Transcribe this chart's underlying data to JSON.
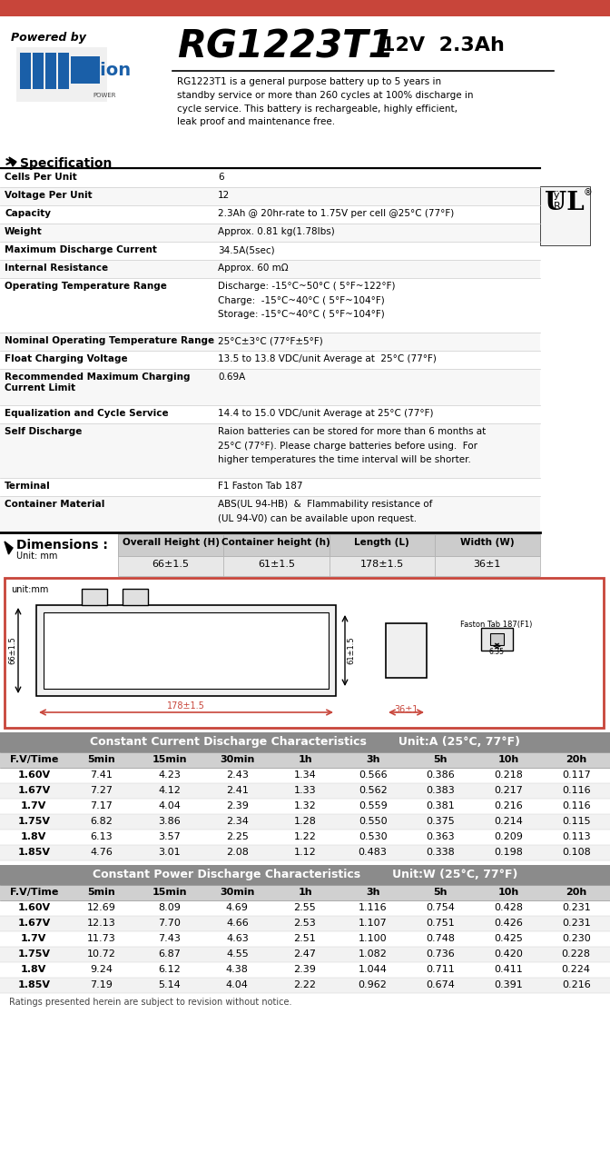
{
  "top_bar_color": "#C8453A",
  "header_bg": "#ffffff",
  "model": "RG1223T1",
  "voltage": "12V",
  "capacity": "2.3Ah",
  "description": "RG1223T1 is a general purpose battery up to 5 years in\nstandby service or more than 260 cycles at 100% discharge in\ncycle service. This battery is rechargeable, highly efficient,\nleak proof and maintenance free.",
  "spec_title": "Specification",
  "specs": [
    [
      "Cells Per Unit",
      "6"
    ],
    [
      "Voltage Per Unit",
      "12"
    ],
    [
      "Capacity",
      "2.3Ah @ 20hr-rate to 1.75V per cell @25°C (77°F)"
    ],
    [
      "Weight",
      "Approx. 0.81 kg(1.78lbs)"
    ],
    [
      "Maximum Discharge Current",
      "34.5A(5sec)"
    ],
    [
      "Internal Resistance",
      "Approx. 60 mΩ"
    ],
    [
      "Operating Temperature Range",
      "Discharge: -15°C~50°C ( 5°F~122°F)\nCharge:  -15°C~40°C ( 5°F~104°F)\nStorage: -15°C~40°C ( 5°F~104°F)"
    ],
    [
      "Nominal Operating Temperature Range",
      "25°C±3°C (77°F±5°F)"
    ],
    [
      "Float Charging Voltage",
      "13.5 to 13.8 VDC/unit Average at  25°C (77°F)"
    ],
    [
      "Recommended Maximum Charging\nCurrent Limit",
      "0.69A"
    ],
    [
      "Equalization and Cycle Service",
      "14.4 to 15.0 VDC/unit Average at 25°C (77°F)"
    ],
    [
      "Self Discharge",
      "Raion batteries can be stored for more than 6 months at\n25°C (77°F). Please charge batteries before using.  For\nhigher temperatures the time interval will be shorter."
    ],
    [
      "Terminal",
      "F1 Faston Tab 187"
    ],
    [
      "Container Material",
      "ABS(UL 94-HB)  &  Flammability resistance of\n(UL 94-V0) can be available upon request."
    ]
  ],
  "dim_title": "Dimensions :",
  "dim_unit": "Unit: mm",
  "dim_headers": [
    "Overall Height (H)",
    "Container height (h)",
    "Length (L)",
    "Width (W)"
  ],
  "dim_values": [
    "66±1.5",
    "61±1.5",
    "178±1.5",
    "36±1"
  ],
  "cc_title": "Constant Current Discharge Characteristics",
  "cc_unit": "Unit:A (25°C, 77°F)",
  "cc_headers": [
    "F.V/Time",
    "5min",
    "15min",
    "30min",
    "1h",
    "3h",
    "5h",
    "10h",
    "20h"
  ],
  "cc_data": [
    [
      "1.60V",
      "7.41",
      "4.23",
      "2.43",
      "1.34",
      "0.566",
      "0.386",
      "0.218",
      "0.117"
    ],
    [
      "1.67V",
      "7.27",
      "4.12",
      "2.41",
      "1.33",
      "0.562",
      "0.383",
      "0.217",
      "0.116"
    ],
    [
      "1.7V",
      "7.17",
      "4.04",
      "2.39",
      "1.32",
      "0.559",
      "0.381",
      "0.216",
      "0.116"
    ],
    [
      "1.75V",
      "6.82",
      "3.86",
      "2.34",
      "1.28",
      "0.550",
      "0.375",
      "0.214",
      "0.115"
    ],
    [
      "1.8V",
      "6.13",
      "3.57",
      "2.25",
      "1.22",
      "0.530",
      "0.363",
      "0.209",
      "0.113"
    ],
    [
      "1.85V",
      "4.76",
      "3.01",
      "2.08",
      "1.12",
      "0.483",
      "0.338",
      "0.198",
      "0.108"
    ]
  ],
  "cp_title": "Constant Power Discharge Characteristics",
  "cp_unit": "Unit:W (25°C, 77°F)",
  "cp_headers": [
    "F.V/Time",
    "5min",
    "15min",
    "30min",
    "1h",
    "3h",
    "5h",
    "10h",
    "20h"
  ],
  "cp_data": [
    [
      "1.60V",
      "12.69",
      "8.09",
      "4.69",
      "2.55",
      "1.116",
      "0.754",
      "0.428",
      "0.231"
    ],
    [
      "1.67V",
      "12.13",
      "7.70",
      "4.66",
      "2.53",
      "1.107",
      "0.751",
      "0.426",
      "0.231"
    ],
    [
      "1.7V",
      "11.73",
      "7.43",
      "4.63",
      "2.51",
      "1.100",
      "0.748",
      "0.425",
      "0.230"
    ],
    [
      "1.75V",
      "10.72",
      "6.87",
      "4.55",
      "2.47",
      "1.082",
      "0.736",
      "0.420",
      "0.228"
    ],
    [
      "1.8V",
      "9.24",
      "6.12",
      "4.38",
      "2.39",
      "1.044",
      "0.711",
      "0.411",
      "0.224"
    ],
    [
      "1.85V",
      "7.19",
      "5.14",
      "4.04",
      "2.22",
      "0.962",
      "0.674",
      "0.391",
      "0.216"
    ]
  ],
  "footer_note": "Ratings presented herein are subject to revision without notice.",
  "accent_color": "#C8453A",
  "table_header_bg": "#8B8B8B",
  "table_row_alt": "#F2F2F2",
  "dim_header_bg": "#CCCCCC",
  "dim_value_bg": "#E8E8E8"
}
